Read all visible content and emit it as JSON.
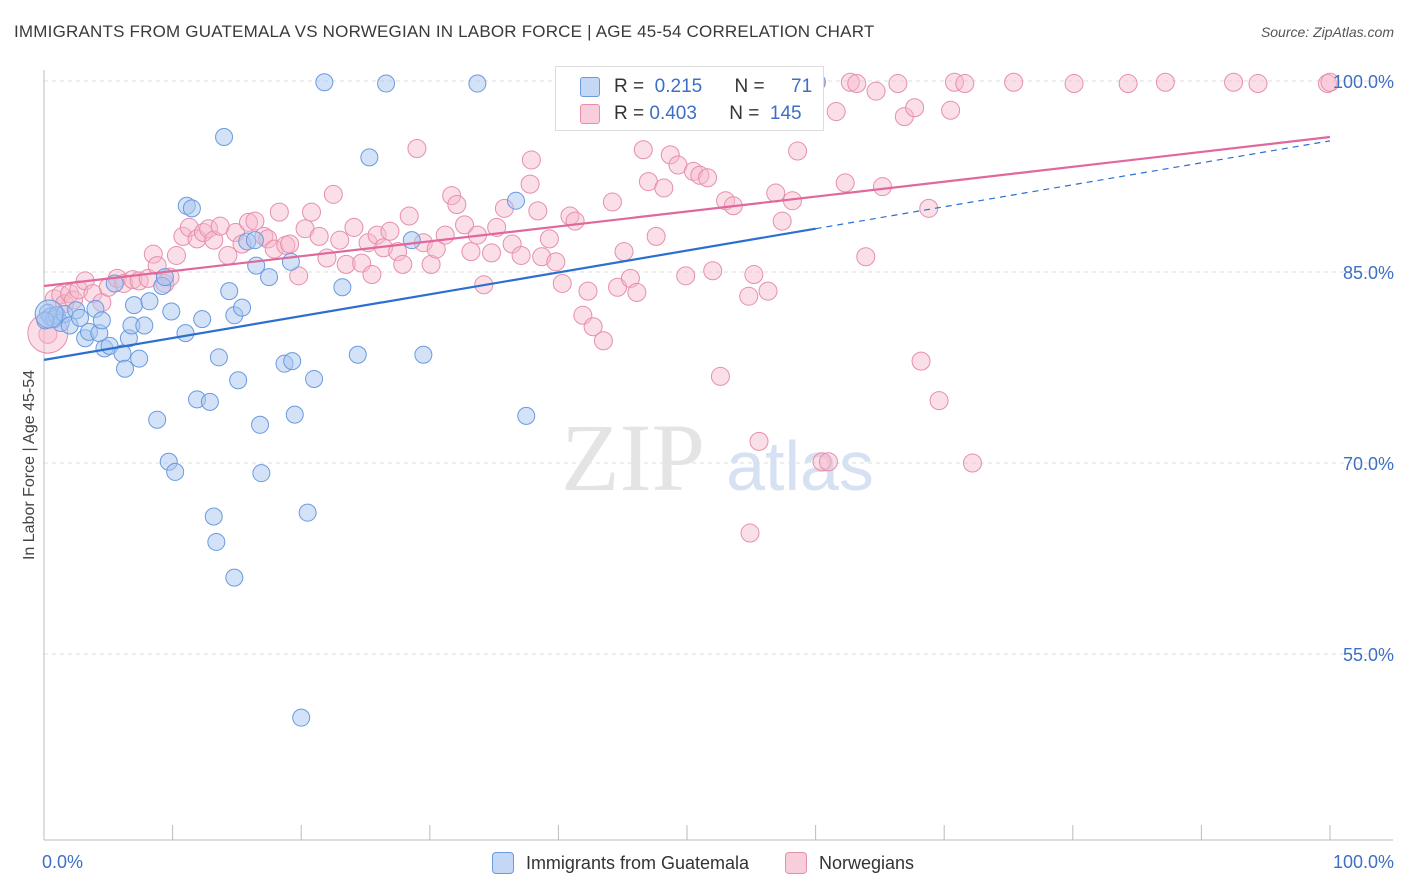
{
  "title": "IMMIGRANTS FROM GUATEMALA VS NORWEGIAN IN LABOR FORCE | AGE 45-54 CORRELATION CHART",
  "source": "Source: ZipAtlas.com",
  "watermark": {
    "zip": "ZIP",
    "atlas": "atlas"
  },
  "legend": {
    "rows": [
      {
        "r_label": "R =",
        "r_value": "0.215",
        "n_label": "N =",
        "n_value": "71"
      },
      {
        "r_label": "R =",
        "r_value": "0.403",
        "n_label": "N =",
        "n_value": "145"
      }
    ]
  },
  "colors": {
    "blue_fill": "#a8c6f0",
    "blue_stroke": "#6a9ae0",
    "blue_line": "#2b6fd1",
    "pink_fill": "#f6b9cc",
    "pink_stroke": "#e68fab",
    "pink_line": "#e0689a",
    "tick_label": "#3d6fc6",
    "grid": "#dddddd"
  },
  "chart_data": {
    "type": "scatter",
    "title": "IMMIGRANTS FROM GUATEMALA VS NORWEGIAN IN LABOR FORCE | AGE 45-54 CORRELATION CHART",
    "xlabel": "",
    "ylabel": "In Labor Force | Age 45-54",
    "xlim": [
      0,
      100
    ],
    "ylim": [
      40,
      102
    ],
    "x_tick_labels": [
      "0.0%",
      "100.0%"
    ],
    "y_ticks": [
      55,
      70,
      85,
      100
    ],
    "y_tick_labels": [
      "55.0%",
      "70.0%",
      "85.0%",
      "100.0%"
    ],
    "grid": true,
    "legend_position": "top-center",
    "series": [
      {
        "name": "Immigrants from Guatemala",
        "color": "#a8c6f0",
        "trend": {
          "x0": 0,
          "y0": 78.1,
          "x1": 60,
          "y1": 88.4,
          "dashed_to_x": 100,
          "dashed_to_y": 95.3
        },
        "points": [
          [
            0.3,
            81.8
          ],
          [
            0.5,
            81.5
          ],
          [
            0.8,
            81.3
          ],
          [
            1.0,
            81.6
          ],
          [
            1.3,
            81.0
          ],
          [
            1.6,
            81.7
          ],
          [
            2.0,
            80.8
          ],
          [
            2.5,
            82.0
          ],
          [
            2.8,
            81.4
          ],
          [
            3.2,
            79.8
          ],
          [
            3.5,
            80.3
          ],
          [
            4.0,
            82.1
          ],
          [
            4.3,
            80.2
          ],
          [
            4.5,
            81.2
          ],
          [
            4.7,
            79.0
          ],
          [
            5.1,
            79.2
          ],
          [
            5.5,
            84.1
          ],
          [
            6.1,
            78.6
          ],
          [
            6.3,
            77.4
          ],
          [
            6.6,
            79.8
          ],
          [
            6.8,
            80.8
          ],
          [
            7.0,
            82.4
          ],
          [
            7.4,
            78.2
          ],
          [
            7.8,
            80.8
          ],
          [
            8.2,
            82.7
          ],
          [
            8.8,
            73.4
          ],
          [
            9.2,
            83.9
          ],
          [
            9.4,
            84.6
          ],
          [
            9.7,
            70.1
          ],
          [
            9.9,
            81.9
          ],
          [
            10.2,
            69.3
          ],
          [
            11.0,
            80.2
          ],
          [
            11.1,
            90.2
          ],
          [
            11.5,
            90.0
          ],
          [
            11.9,
            75.0
          ],
          [
            12.3,
            81.3
          ],
          [
            12.9,
            74.8
          ],
          [
            13.2,
            65.8
          ],
          [
            13.4,
            63.8
          ],
          [
            13.6,
            78.3
          ],
          [
            14.0,
            95.6
          ],
          [
            14.4,
            83.5
          ],
          [
            14.8,
            61.0
          ],
          [
            14.8,
            81.6
          ],
          [
            15.1,
            76.5
          ],
          [
            15.4,
            82.2
          ],
          [
            15.8,
            87.4
          ],
          [
            16.4,
            87.5
          ],
          [
            16.5,
            85.5
          ],
          [
            16.8,
            73.0
          ],
          [
            16.9,
            69.2
          ],
          [
            17.5,
            84.6
          ],
          [
            18.7,
            77.8
          ],
          [
            19.2,
            85.8
          ],
          [
            19.3,
            78.0
          ],
          [
            19.5,
            73.8
          ],
          [
            20.0,
            50.0
          ],
          [
            20.5,
            66.1
          ],
          [
            21.0,
            76.6
          ],
          [
            21.8,
            99.9
          ],
          [
            23.2,
            83.8
          ],
          [
            24.4,
            78.5
          ],
          [
            25.3,
            94.0
          ],
          [
            26.6,
            99.8
          ],
          [
            28.6,
            87.5
          ],
          [
            29.5,
            78.5
          ],
          [
            33.7,
            99.8
          ],
          [
            36.7,
            90.6
          ],
          [
            37.5,
            73.7
          ],
          [
            60.1,
            99.9
          ],
          [
            0.1,
            81.2
          ]
        ]
      },
      {
        "name": "Norwegians",
        "color": "#f6b9cc",
        "trend": {
          "x0": 0,
          "y0": 83.9,
          "x1": 100,
          "y1": 95.6
        },
        "points": [
          [
            0.3,
            80.1
          ],
          [
            0.8,
            82.9
          ],
          [
            1.3,
            83.2
          ],
          [
            1.6,
            82.5
          ],
          [
            2.0,
            83.3
          ],
          [
            2.3,
            82.8
          ],
          [
            2.7,
            83.6
          ],
          [
            3.2,
            84.3
          ],
          [
            3.8,
            83.3
          ],
          [
            4.5,
            82.6
          ],
          [
            5.0,
            83.8
          ],
          [
            5.7,
            84.5
          ],
          [
            6.2,
            84.1
          ],
          [
            6.9,
            84.4
          ],
          [
            7.4,
            84.3
          ],
          [
            8.1,
            84.5
          ],
          [
            8.5,
            86.4
          ],
          [
            8.8,
            85.5
          ],
          [
            9.4,
            84.1
          ],
          [
            9.8,
            84.6
          ],
          [
            10.3,
            86.3
          ],
          [
            10.8,
            87.8
          ],
          [
            11.3,
            88.5
          ],
          [
            11.9,
            87.6
          ],
          [
            12.4,
            88.1
          ],
          [
            12.8,
            88.4
          ],
          [
            13.2,
            87.5
          ],
          [
            13.7,
            88.6
          ],
          [
            14.3,
            86.3
          ],
          [
            14.9,
            88.1
          ],
          [
            15.4,
            87.2
          ],
          [
            15.9,
            88.9
          ],
          [
            16.4,
            89.0
          ],
          [
            17.1,
            87.8
          ],
          [
            17.4,
            87.6
          ],
          [
            17.9,
            86.8
          ],
          [
            18.3,
            89.7
          ],
          [
            18.8,
            87.1
          ],
          [
            19.1,
            87.2
          ],
          [
            19.8,
            84.7
          ],
          [
            20.3,
            88.4
          ],
          [
            20.8,
            89.7
          ],
          [
            21.4,
            87.8
          ],
          [
            22.0,
            86.1
          ],
          [
            22.5,
            91.1
          ],
          [
            23.0,
            87.5
          ],
          [
            23.5,
            85.6
          ],
          [
            24.1,
            88.5
          ],
          [
            24.7,
            85.7
          ],
          [
            25.2,
            87.3
          ],
          [
            25.5,
            84.8
          ],
          [
            25.9,
            87.9
          ],
          [
            26.4,
            86.9
          ],
          [
            26.9,
            88.2
          ],
          [
            27.5,
            86.6
          ],
          [
            27.9,
            85.6
          ],
          [
            28.4,
            89.4
          ],
          [
            29.0,
            94.7
          ],
          [
            29.5,
            87.3
          ],
          [
            30.1,
            85.6
          ],
          [
            30.5,
            86.8
          ],
          [
            31.2,
            87.9
          ],
          [
            31.7,
            91.0
          ],
          [
            32.1,
            90.3
          ],
          [
            32.7,
            88.7
          ],
          [
            33.2,
            86.6
          ],
          [
            33.7,
            87.9
          ],
          [
            34.2,
            84.0
          ],
          [
            34.8,
            86.5
          ],
          [
            35.2,
            88.5
          ],
          [
            35.8,
            90.0
          ],
          [
            36.4,
            87.2
          ],
          [
            37.1,
            86.3
          ],
          [
            37.8,
            91.9
          ],
          [
            37.9,
            93.8
          ],
          [
            38.4,
            89.8
          ],
          [
            38.7,
            86.2
          ],
          [
            39.3,
            87.6
          ],
          [
            39.8,
            85.8
          ],
          [
            40.3,
            84.1
          ],
          [
            40.9,
            89.4
          ],
          [
            41.3,
            89.0
          ],
          [
            41.9,
            81.6
          ],
          [
            42.3,
            83.5
          ],
          [
            42.7,
            80.7
          ],
          [
            43.5,
            79.6
          ],
          [
            44.2,
            90.5
          ],
          [
            44.6,
            83.8
          ],
          [
            45.1,
            86.6
          ],
          [
            45.6,
            84.5
          ],
          [
            46.1,
            83.4
          ],
          [
            46.6,
            94.6
          ],
          [
            47.0,
            92.1
          ],
          [
            47.6,
            87.8
          ],
          [
            48.2,
            91.6
          ],
          [
            48.7,
            94.2
          ],
          [
            49.3,
            93.4
          ],
          [
            49.9,
            84.7
          ],
          [
            50.5,
            92.9
          ],
          [
            51.0,
            92.6
          ],
          [
            51.6,
            92.4
          ],
          [
            52.0,
            85.1
          ],
          [
            52.6,
            76.8
          ],
          [
            53.0,
            90.6
          ],
          [
            53.6,
            90.2
          ],
          [
            54.3,
            97.7
          ],
          [
            54.8,
            83.1
          ],
          [
            55.2,
            84.8
          ],
          [
            55.6,
            71.7
          ],
          [
            56.3,
            83.5
          ],
          [
            56.9,
            91.2
          ],
          [
            57.4,
            89.0
          ],
          [
            58.2,
            90.6
          ],
          [
            58.6,
            94.5
          ],
          [
            59.5,
            98.3
          ],
          [
            60.0,
            99.8
          ],
          [
            60.5,
            70.1
          ],
          [
            61.0,
            70.1
          ],
          [
            61.6,
            97.6
          ],
          [
            62.3,
            92.0
          ],
          [
            62.7,
            99.9
          ],
          [
            63.2,
            99.8
          ],
          [
            63.9,
            86.2
          ],
          [
            64.7,
            99.2
          ],
          [
            65.2,
            91.7
          ],
          [
            66.4,
            99.8
          ],
          [
            66.9,
            97.2
          ],
          [
            67.7,
            97.9
          ],
          [
            68.2,
            78.0
          ],
          [
            68.8,
            90.0
          ],
          [
            69.6,
            74.9
          ],
          [
            70.5,
            97.7
          ],
          [
            70.8,
            99.9
          ],
          [
            71.6,
            99.8
          ],
          [
            72.2,
            70.0
          ],
          [
            75.4,
            99.9
          ],
          [
            80.1,
            99.8
          ],
          [
            84.3,
            99.8
          ],
          [
            87.2,
            99.9
          ],
          [
            92.5,
            99.9
          ],
          [
            94.4,
            99.8
          ],
          [
            99.8,
            99.8
          ],
          [
            100.0,
            99.9
          ],
          [
            57.3,
            99.9
          ],
          [
            54.9,
            64.5
          ]
        ]
      }
    ]
  },
  "bottom_legend": [
    "Immigrants from Guatemala",
    "Norwegians"
  ]
}
